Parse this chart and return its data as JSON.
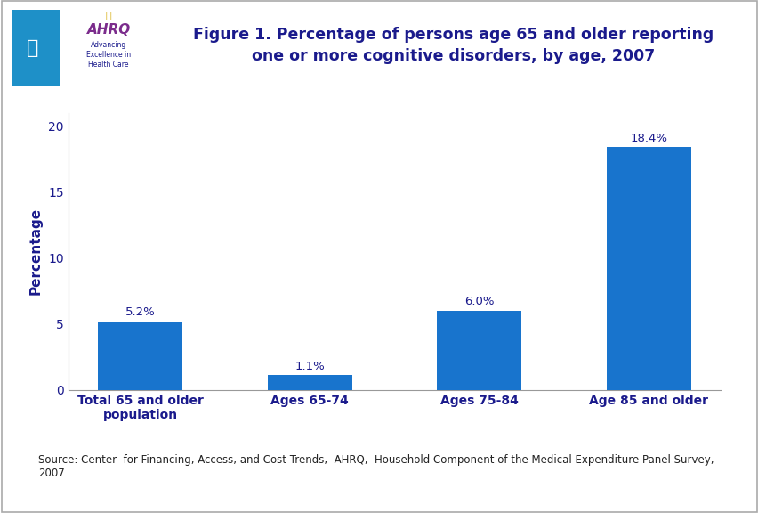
{
  "title": "Figure 1. Percentage of persons age 65 and older reporting\none or more cognitive disorders, by age, 2007",
  "categories": [
    "Total 65 and older\npopulation",
    "Ages 65-74",
    "Ages 75-84",
    "Age 85 and older"
  ],
  "values": [
    5.2,
    1.1,
    6.0,
    18.4
  ],
  "labels": [
    "5.2%",
    "1.1%",
    "6.0%",
    "18.4%"
  ],
  "bar_color": "#1874CD",
  "ylabel": "Percentage",
  "ylim": [
    0,
    21
  ],
  "yticks": [
    0,
    5,
    10,
    15,
    20
  ],
  "source_text": "Source: Center  for Financing, Access, and Cost Trends,  AHRQ,  Household Component of the Medical Expenditure Panel Survey,\n2007",
  "title_color": "#1a1a8c",
  "axis_label_color": "#1a1a8c",
  "tick_label_color": "#1a1a8c",
  "bar_label_color": "#1a1a8c",
  "background_color": "#ffffff",
  "header_bg_color": "#1e90c8",
  "header_bar_color": "#00008B",
  "divider_color": "#00008B",
  "title_fontsize": 12.5,
  "source_fontsize": 8.5,
  "bar_label_fontsize": 9.5,
  "tick_fontsize": 10,
  "ylabel_fontsize": 11
}
